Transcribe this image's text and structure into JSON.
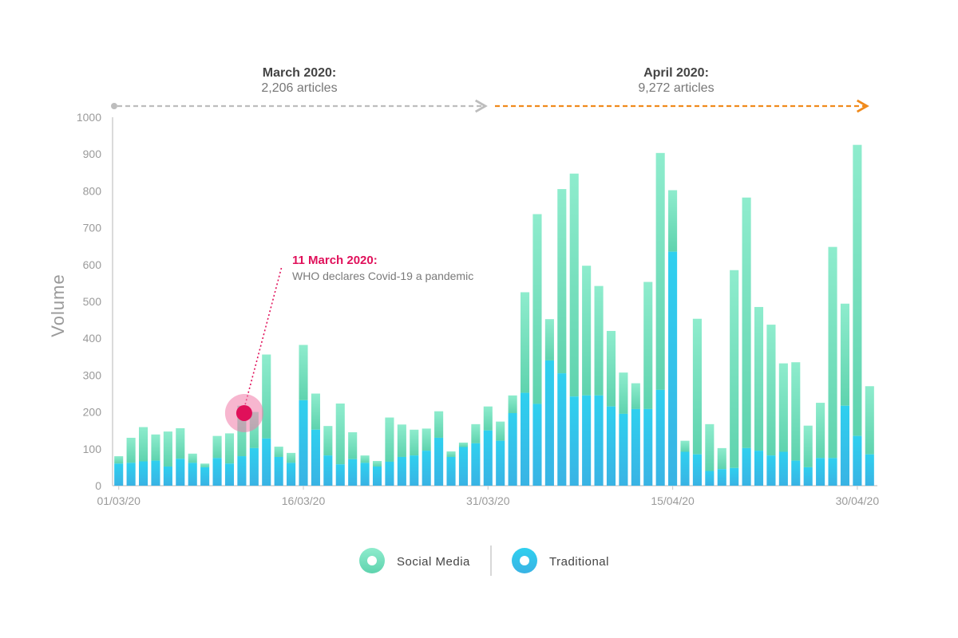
{
  "colors": {
    "social_media": "#7fe6c6",
    "traditional": "#2bc8ea",
    "march_arrow": "#bdbdbd",
    "april_arrow": "#f08a1c",
    "annotation": "#e0105a",
    "axis": "#cfcfcf",
    "text": "#9a9a9a"
  },
  "periods": {
    "march": {
      "title": "March 2020:",
      "subtitle": "2,206 articles"
    },
    "april": {
      "title": "April 2020:",
      "subtitle": "9,272 articles"
    }
  },
  "annotation": {
    "title": "11 March 2020:",
    "subtitle": "WHO declares Covid-19 a pandemic",
    "date": "11/03/20",
    "value": 197
  },
  "legend": {
    "items": [
      {
        "label": "Social Media",
        "color_key": "social_media",
        "icon": "circle-ring-icon"
      },
      {
        "label": "Traditional",
        "color_key": "traditional",
        "icon": "circle-ring-icon"
      }
    ]
  },
  "chart_data": {
    "type": "bar",
    "stacked": true,
    "ylabel": "Volume",
    "ylim": [
      0,
      1000
    ],
    "yticks": [
      0,
      100,
      200,
      300,
      400,
      500,
      600,
      700,
      800,
      900,
      1000
    ],
    "xtick_labels": [
      "01/03/20",
      "16/03/20",
      "31/03/20",
      "15/04/20",
      "30/04/20"
    ],
    "grid": false,
    "legend_position": "bottom-center",
    "categories": [
      "01/03/20",
      "02/03/20",
      "03/03/20",
      "04/03/20",
      "05/03/20",
      "06/03/20",
      "07/03/20",
      "08/03/20",
      "09/03/20",
      "10/03/20",
      "11/03/20",
      "12/03/20",
      "13/03/20",
      "14/03/20",
      "15/03/20",
      "16/03/20",
      "17/03/20",
      "18/03/20",
      "19/03/20",
      "20/03/20",
      "21/03/20",
      "22/03/20",
      "23/03/20",
      "24/03/20",
      "25/03/20",
      "26/03/20",
      "27/03/20",
      "28/03/20",
      "29/03/20",
      "30/03/20",
      "31/03/20",
      "01/04/20",
      "02/04/20",
      "03/04/20",
      "04/04/20",
      "05/04/20",
      "06/04/20",
      "07/04/20",
      "08/04/20",
      "09/04/20",
      "10/04/20",
      "11/04/20",
      "12/04/20",
      "13/04/20",
      "14/04/20",
      "15/04/20",
      "16/04/20",
      "17/04/20",
      "18/04/20",
      "19/04/20",
      "20/04/20",
      "21/04/20",
      "22/04/20",
      "23/04/20",
      "24/04/20",
      "25/04/20",
      "26/04/20",
      "27/04/20",
      "28/04/20",
      "29/04/20",
      "30/04/20",
      "01/05/20"
    ],
    "series": [
      {
        "name": "Traditional",
        "values": [
          60,
          62,
          66,
          68,
          52,
          73,
          62,
          50,
          75,
          60,
          80,
          102,
          128,
          78,
          62,
          232,
          152,
          82,
          58,
          72,
          62,
          52,
          65,
          78,
          82,
          95,
          130,
          78,
          105,
          115,
          150,
          122,
          197,
          252,
          222,
          340,
          305,
          242,
          245,
          245,
          215,
          195,
          208,
          208,
          260,
          635,
          92,
          85,
          40,
          45,
          48,
          102,
          95,
          82,
          92,
          68,
          50,
          75,
          75,
          217,
          135,
          85
        ]
      },
      {
        "name": "Social Media",
        "values": [
          20,
          68,
          93,
          71,
          95,
          83,
          25,
          10,
          60,
          82,
          137,
          98,
          228,
          28,
          27,
          150,
          98,
          80,
          165,
          73,
          20,
          15,
          120,
          88,
          70,
          60,
          72,
          15,
          12,
          52,
          65,
          52,
          48,
          273,
          515,
          112,
          500,
          605,
          352,
          297,
          205,
          112,
          70,
          345,
          643,
          167,
          30,
          368,
          127,
          57,
          537,
          680,
          390,
          355,
          240,
          267,
          113,
          150,
          573,
          277,
          790,
          185
        ]
      }
    ]
  }
}
